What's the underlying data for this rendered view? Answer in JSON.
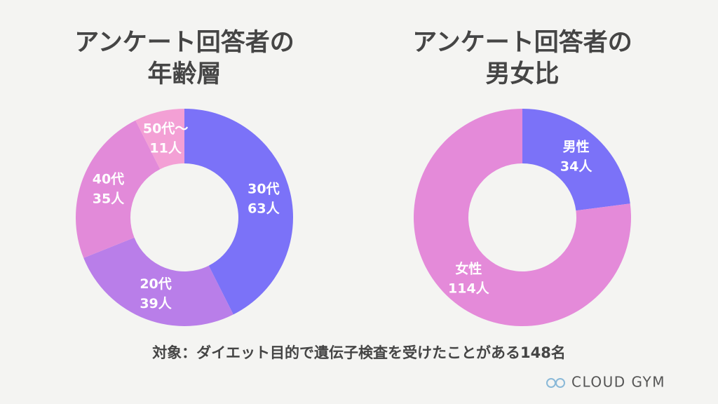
{
  "chart_data": [
    {
      "type": "donut",
      "title": [
        "アンケート回答者の",
        "年齢層"
      ],
      "categories": [
        "30代",
        "20代",
        "40代",
        "50代〜"
      ],
      "values": [
        63,
        39,
        35,
        11
      ],
      "value_labels": [
        "63人",
        "39人",
        "35人",
        "11人"
      ],
      "colors": [
        "#7b72f8",
        "#b97ee9",
        "#e28ad9",
        "#f3a0d5"
      ]
    },
    {
      "type": "donut",
      "title": [
        "アンケート回答者の",
        "男女比"
      ],
      "categories": [
        "男性",
        "女性"
      ],
      "values": [
        34,
        114
      ],
      "value_labels": [
        "34人",
        "114人"
      ],
      "colors": [
        "#7b72f8",
        "#e48ad9"
      ]
    }
  ],
  "note": "対象：ダイエット目的で遺伝子検査を受けたことがある148名",
  "brand": "CLOUD GYM"
}
